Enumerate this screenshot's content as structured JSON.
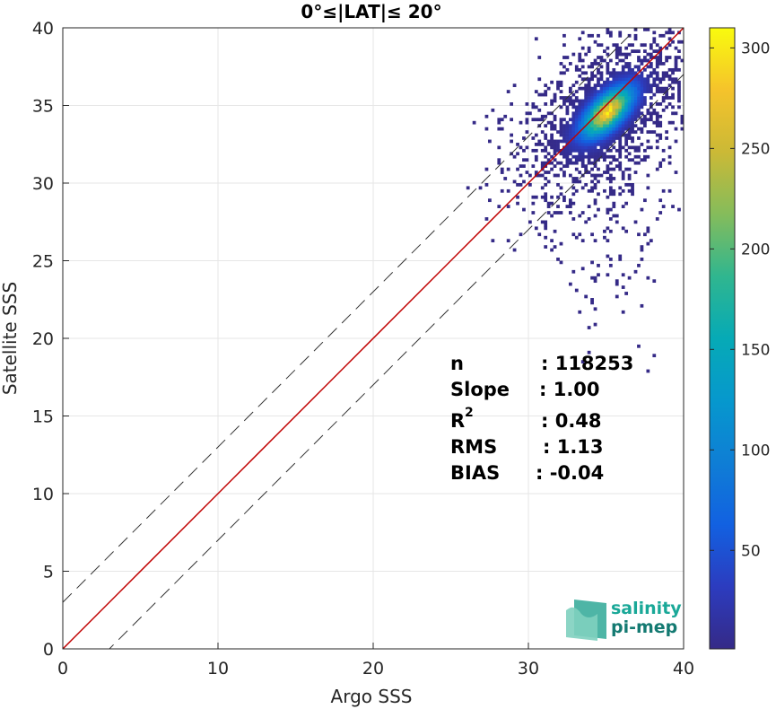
{
  "chart_data": {
    "type": "heatmap",
    "title": "0°≤|LAT|≤ 20°",
    "xlabel": "Argo SSS",
    "ylabel": "Satellite SSS",
    "xlim": [
      0,
      40
    ],
    "ylim": [
      0,
      40
    ],
    "xticks": [
      "0",
      "10",
      "20",
      "30",
      "40"
    ],
    "yticks": [
      "0",
      "5",
      "10",
      "15",
      "20",
      "25",
      "30",
      "35",
      "40"
    ],
    "grid": true,
    "density_center": {
      "x": 35,
      "y": 34.5
    },
    "density_peak_count": 310,
    "reference_lines": [
      {
        "name": "1:1",
        "slope": 1,
        "intercept": 0,
        "style": "solid",
        "color": "#c00000"
      },
      {
        "name": "+3",
        "slope": 1,
        "intercept": 3,
        "style": "dashed",
        "color": "#333333"
      },
      {
        "name": "-3",
        "slope": 1,
        "intercept": -3,
        "style": "dashed",
        "color": "#333333"
      }
    ],
    "colorbar": {
      "colormap": "parula",
      "range": [
        1,
        310
      ],
      "ticks": [
        "50",
        "100",
        "150",
        "200",
        "250",
        "300"
      ]
    },
    "stats": [
      {
        "label": "n",
        "value": ": 118253"
      },
      {
        "label": "Slope",
        "value": ": 1.00"
      },
      {
        "label": "R",
        "sup": "2",
        "value": ": 0.48"
      },
      {
        "label": "RMS",
        "value": ": 1.13"
      },
      {
        "label": "BIAS",
        "value": ": -0.04"
      }
    ]
  },
  "logo": {
    "line1": "salinity",
    "line2": "pi-mep",
    "color1": "#1aa898",
    "color2": "#147a72"
  }
}
